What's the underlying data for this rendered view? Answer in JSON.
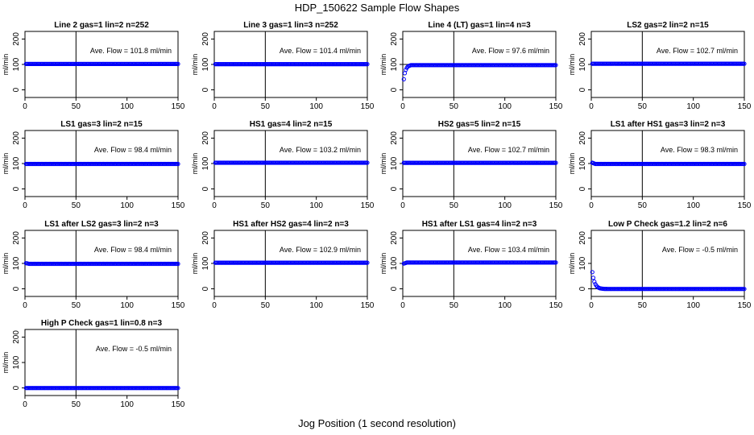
{
  "figure": {
    "title": "HDP_150622  Sample Flow Shapes",
    "xlabel": "Jog Position (1 second resolution)"
  },
  "chart_data": [
    {
      "type": "scatter",
      "title": "Line 2 gas=1 lin=2 n=252",
      "annotation": "Ave. Flow =  101.8  ml/min",
      "ylabel": "ml/min",
      "xlim": [
        0,
        150
      ],
      "ylim": [
        -30,
        230
      ],
      "xticks": [
        0,
        50,
        100,
        150
      ],
      "yticks": [
        0,
        100,
        200
      ],
      "vline": 50,
      "hline": 100,
      "shape": "flat",
      "mean": 101.8,
      "color": "#0000ff"
    },
    {
      "type": "scatter",
      "title": "Line 3 gas=1 lin=3 n=252",
      "annotation": "Ave. Flow =  101.4  ml/min",
      "ylabel": "ml/min",
      "xlim": [
        0,
        150
      ],
      "ylim": [
        -30,
        230
      ],
      "xticks": [
        0,
        50,
        100,
        150
      ],
      "yticks": [
        0,
        100,
        200
      ],
      "vline": 50,
      "hline": 100,
      "shape": "flat",
      "mean": 101.4,
      "color": "#0000ff"
    },
    {
      "type": "scatter",
      "title": "Line 4 (LT) gas=1 lin=4 n=3",
      "annotation": "Ave. Flow =  97.6  ml/min",
      "ylabel": "ml/min",
      "xlim": [
        0,
        150
      ],
      "ylim": [
        -30,
        230
      ],
      "xticks": [
        0,
        50,
        100,
        150
      ],
      "yticks": [
        0,
        100,
        200
      ],
      "vline": 50,
      "hline": 100,
      "shape": "rise",
      "mean": 97.6,
      "color": "#0000ff"
    },
    {
      "type": "scatter",
      "title": "LS2 gas=2 lin=2 n=15",
      "annotation": "Ave. Flow =  102.7  ml/min",
      "ylabel": "ml/min",
      "xlim": [
        0,
        150
      ],
      "ylim": [
        -30,
        230
      ],
      "xticks": [
        0,
        50,
        100,
        150
      ],
      "yticks": [
        0,
        100,
        200
      ],
      "vline": 50,
      "hline": 100,
      "shape": "flat",
      "mean": 102.7,
      "color": "#0000ff"
    },
    {
      "type": "scatter",
      "title": "LS1 gas=3 lin=2 n=15",
      "annotation": "Ave. Flow =  98.4  ml/min",
      "ylabel": "ml/min",
      "xlim": [
        0,
        150
      ],
      "ylim": [
        -30,
        230
      ],
      "xticks": [
        0,
        50,
        100,
        150
      ],
      "yticks": [
        0,
        100,
        200
      ],
      "vline": 50,
      "hline": 100,
      "shape": "flat",
      "mean": 98.4,
      "color": "#0000ff"
    },
    {
      "type": "scatter",
      "title": "HS1 gas=4 lin=2 n=15",
      "annotation": "Ave. Flow =  103.2  ml/min",
      "ylabel": "ml/min",
      "xlim": [
        0,
        150
      ],
      "ylim": [
        -30,
        230
      ],
      "xticks": [
        0,
        50,
        100,
        150
      ],
      "yticks": [
        0,
        100,
        200
      ],
      "vline": 50,
      "hline": 100,
      "shape": "flat",
      "mean": 103.2,
      "color": "#0000ff"
    },
    {
      "type": "scatter",
      "title": "HS2 gas=5 lin=2 n=15",
      "annotation": "Ave. Flow =  102.7  ml/min",
      "ylabel": "ml/min",
      "xlim": [
        0,
        150
      ],
      "ylim": [
        -30,
        230
      ],
      "xticks": [
        0,
        50,
        100,
        150
      ],
      "yticks": [
        0,
        100,
        200
      ],
      "vline": 50,
      "hline": 100,
      "shape": "flat",
      "mean": 102.7,
      "color": "#0000ff"
    },
    {
      "type": "scatter",
      "title": "LS1 after HS1 gas=3 lin=2 n=3",
      "annotation": "Ave. Flow =  98.3  ml/min",
      "ylabel": "ml/min",
      "xlim": [
        0,
        150
      ],
      "ylim": [
        -30,
        230
      ],
      "xticks": [
        0,
        50,
        100,
        150
      ],
      "yticks": [
        0,
        100,
        200
      ],
      "vline": 50,
      "hline": 100,
      "shape": "dropstart",
      "mean": 98.3,
      "start": 105,
      "color": "#0000ff"
    },
    {
      "type": "scatter",
      "title": "LS1 after LS2 gas=3 lin=2 n=3",
      "annotation": "Ave. Flow =  98.4  ml/min",
      "ylabel": "ml/min",
      "xlim": [
        0,
        150
      ],
      "ylim": [
        -30,
        230
      ],
      "xticks": [
        0,
        50,
        100,
        150
      ],
      "yticks": [
        0,
        100,
        200
      ],
      "vline": 50,
      "hline": 100,
      "shape": "dropstart",
      "mean": 98.4,
      "start": 102,
      "color": "#0000ff"
    },
    {
      "type": "scatter",
      "title": "HS1 after HS2 gas=4 lin=2 n=3",
      "annotation": "Ave. Flow =  102.9  ml/min",
      "ylabel": "ml/min",
      "xlim": [
        0,
        150
      ],
      "ylim": [
        -30,
        230
      ],
      "xticks": [
        0,
        50,
        100,
        150
      ],
      "yticks": [
        0,
        100,
        200
      ],
      "vline": 50,
      "hline": 100,
      "shape": "flat",
      "mean": 102.9,
      "color": "#0000ff"
    },
    {
      "type": "scatter",
      "title": "HS1 after LS1 gas=4 lin=2 n=3",
      "annotation": "Ave. Flow =  103.4  ml/min",
      "ylabel": "ml/min",
      "xlim": [
        0,
        150
      ],
      "ylim": [
        -30,
        230
      ],
      "xticks": [
        0,
        50,
        100,
        150
      ],
      "yticks": [
        0,
        100,
        200
      ],
      "vline": 50,
      "hline": 100,
      "shape": "risestart",
      "mean": 103.4,
      "start": 98,
      "color": "#0000ff"
    },
    {
      "type": "scatter",
      "title": "Low P Check gas=1.2 lin=2 n=6",
      "annotation": "Ave. Flow =  -0.5  ml/min",
      "ylabel": "ml/min",
      "xlim": [
        0,
        150
      ],
      "ylim": [
        -30,
        230
      ],
      "xticks": [
        0,
        50,
        100,
        150
      ],
      "yticks": [
        0,
        100,
        200
      ],
      "vline": 50,
      "hline": 0,
      "shape": "decay",
      "mean": -0.5,
      "start": 100,
      "color": "#0000ff"
    },
    {
      "type": "scatter",
      "title": "High P Check gas=1 lin=0.8 n=3",
      "annotation": "Ave. Flow =  -0.5  ml/min",
      "ylabel": "ml/min",
      "xlim": [
        0,
        150
      ],
      "ylim": [
        -30,
        230
      ],
      "xticks": [
        0,
        50,
        100,
        150
      ],
      "yticks": [
        0,
        100,
        200
      ],
      "vline": 50,
      "hline": 0,
      "shape": "flat",
      "mean": -0.5,
      "color": "#0000ff"
    }
  ]
}
